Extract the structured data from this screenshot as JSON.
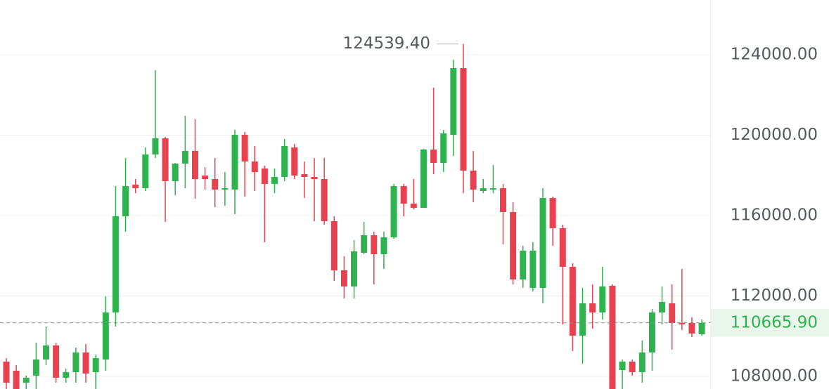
{
  "chart_data": {
    "type": "candlestick",
    "up_color": "#2fb34e",
    "down_color": "#e8414f",
    "ylim": [
      107374,
      126725
    ],
    "yticks": [
      {
        "value": 124000,
        "label": "124000.00"
      },
      {
        "value": 120000,
        "label": "120000.00"
      },
      {
        "value": 116000,
        "label": "116000.00"
      },
      {
        "value": 112000,
        "label": "112000.00"
      },
      {
        "value": 108000,
        "label": "108000.00"
      }
    ],
    "grid": true,
    "last_price": {
      "value": 110665.9,
      "label": "110665.90"
    },
    "max_annotation": {
      "value": 124539.4,
      "label": "124539.40"
    },
    "open": [
      108736,
      108282,
      107688,
      108038,
      108841,
      109540,
      107933,
      108212,
      109190,
      108212,
      108841,
      111181,
      115967,
      117538,
      117364,
      119040,
      119844,
      117713,
      118586,
      119215,
      117993,
      117818,
      117294,
      117294,
      120018,
      118691,
      118342,
      117573,
      117923,
      119390,
      118062,
      117923,
      117818,
      115722,
      113277,
      112473,
      114150,
      115023,
      114080,
      114918,
      117469,
      116595,
      116386,
      119285,
      118621,
      120018,
      123337,
      118237,
      117224,
      117294,
      117364,
      116176,
      112823,
      112404,
      112404,
      116875,
      115373,
      113452,
      110028,
      111635,
      111181,
      112508,
      108317,
      108736,
      108212,
      109190,
      111181,
      111635,
      110657,
      110657,
      110098
    ],
    "high": [
      108911,
      108561,
      108038,
      109679,
      110482,
      109679,
      108387,
      109435,
      109609,
      109085,
      111984,
      117469,
      118866,
      117818,
      119390,
      123232,
      119914,
      118621,
      120962,
      120787,
      118412,
      118866,
      118167,
      120263,
      120158,
      119460,
      118481,
      118342,
      119809,
      119564,
      118691,
      118866,
      118866,
      115967,
      113976,
      114779,
      115687,
      115198,
      115198,
      117573,
      117573,
      117818,
      119320,
      122359,
      120263,
      123756,
      124539.4,
      119215,
      117818,
      118516,
      117573,
      116665,
      114499,
      114674,
      117364,
      116945,
      115548,
      113626,
      112404,
      112578,
      113452,
      112578,
      108841,
      108841,
      109784,
      111356,
      112473,
      112578,
      113347,
      110937,
      110832
    ],
    "low": [
      107374,
      107374,
      107374,
      107374,
      108561,
      107688,
      107688,
      107688,
      107688,
      107374,
      108282,
      110482,
      115198,
      117119,
      117224,
      118866,
      115687,
      117014,
      117364,
      116840,
      117294,
      116421,
      116490,
      116071,
      116945,
      117224,
      114674,
      117119,
      117713,
      117818,
      116875,
      115722,
      115548,
      112753,
      111880,
      111880,
      114080,
      112578,
      113347,
      114849,
      115967,
      116316,
      116386,
      118062,
      118167,
      118971,
      117119,
      116665,
      117119,
      117119,
      114569,
      112578,
      112404,
      112229,
      111635,
      114499,
      110587,
      109260,
      108631,
      110377,
      110832,
      107374,
      107374,
      108038,
      107688,
      108282,
      110587,
      109330,
      110308,
      109959,
      110028
    ],
    "close": [
      107688,
      107374,
      107933,
      108841,
      109540,
      107933,
      108212,
      109190,
      108142,
      108911,
      111181,
      115967,
      117469,
      117364,
      119040,
      119844,
      117713,
      118586,
      119215,
      117818,
      117818,
      117294,
      117364,
      120018,
      118691,
      118167,
      117573,
      117923,
      119460,
      117993,
      117923,
      117818,
      115722,
      113277,
      112473,
      114220,
      115023,
      114080,
      114918,
      117469,
      116595,
      116386,
      119285,
      118621,
      120088,
      123337,
      118237,
      117294,
      117364,
      117364,
      116176,
      112823,
      114255,
      114255,
      116875,
      115373,
      113452,
      110028,
      111635,
      111181,
      112473,
      107374,
      108736,
      108212,
      109190,
      111181,
      111705,
      110657,
      110587,
      110133,
      110665.9
    ]
  }
}
